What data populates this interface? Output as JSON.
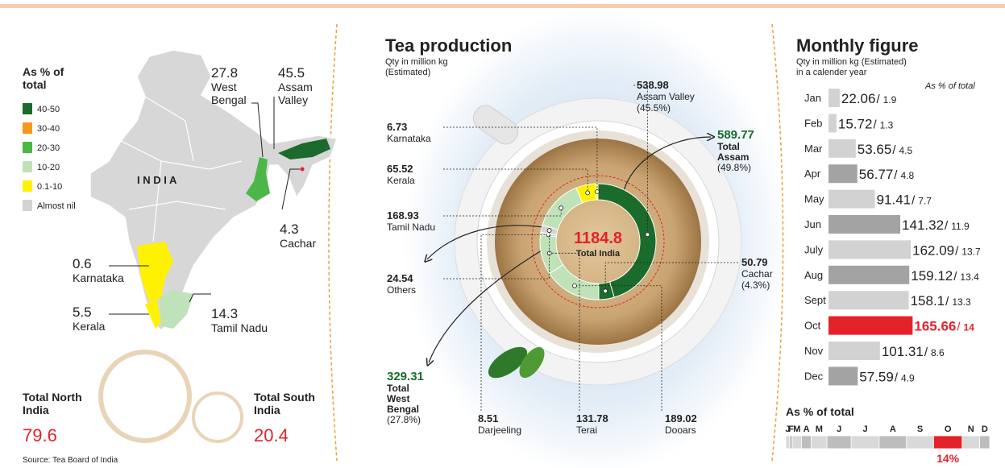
{
  "header": {
    "source": "Source: Tea Board of India"
  },
  "map": {
    "legend_title": "As % of total",
    "legend": [
      {
        "label": "40-50",
        "color": "#1b6b2c"
      },
      {
        "label": "30-40",
        "color": "#f39a1e"
      },
      {
        "label": "20-30",
        "color": "#4cb649"
      },
      {
        "label": "10-20",
        "color": "#bfe2b9"
      },
      {
        "label": "0.1-10",
        "color": "#fff200"
      },
      {
        "label": "Almost nil",
        "color": "#d3d3d3"
      }
    ],
    "country_label": "I N D I A",
    "regions": [
      {
        "value": 27.8,
        "name": "West Bengal"
      },
      {
        "value": 45.5,
        "name": "Assam Valley"
      },
      {
        "value": 4.3,
        "name": "Cachar"
      },
      {
        "value": 0.6,
        "name": "Karnataka"
      },
      {
        "value": 5.5,
        "name": "Kerala"
      },
      {
        "value": 14.3,
        "name": "Tamil Nadu"
      }
    ],
    "totals": [
      {
        "label": "Total North India",
        "value": 79.6
      },
      {
        "label": "Total South India",
        "value": 20.4
      }
    ]
  },
  "chart_data": [
    {
      "type": "donut",
      "title": "Tea production",
      "subtitle": "Qty in million kg (Estimated)",
      "categories": [
        "Assam Valley",
        "Cachar",
        "Dooars",
        "Terai",
        "Darjeeling",
        "Others",
        "Tamil Nadu",
        "Kerala",
        "Karnataka"
      ],
      "values": [
        538.98,
        50.79,
        189.02,
        131.78,
        8.51,
        24.54,
        168.93,
        65.52,
        6.73
      ],
      "colors": [
        "#1b6b2c",
        "#1b6b2c",
        "#bfe2b9",
        "#bfe2b9",
        "#bfe2b9",
        "#d3d3d3",
        "#bfe2b9",
        "#fff200",
        "#fff200"
      ],
      "notes": [
        "(45.5%)",
        "(4.3%)",
        null,
        null,
        null,
        null,
        null,
        null,
        null
      ],
      "center_value": 1184.8,
      "center_label": "Total India",
      "annotations": [
        {
          "value": 589.77,
          "label": "Total Assam",
          "note": "(49.8%)"
        },
        {
          "value": 329.31,
          "label": "Total West Bengal",
          "note": "(27.8%)"
        }
      ]
    },
    {
      "type": "bar",
      "orientation": "horizontal",
      "title": "Monthly figure",
      "subtitle": "Qty in million kg (Estimated) in a calender year",
      "share_title": "As % of total",
      "separator": "/",
      "categories": [
        "Jan",
        "Feb",
        "Mar",
        "Apr",
        "May",
        "Jun",
        "July",
        "Aug",
        "Sept",
        "Oct",
        "Nov",
        "Dec"
      ],
      "values": [
        22.06,
        15.72,
        53.65,
        56.77,
        91.41,
        141.32,
        162.09,
        159.12,
        158.1,
        165.66,
        101.31,
        57.59
      ],
      "share": [
        1.9,
        1.3,
        4.5,
        4.8,
        7.7,
        11.9,
        13.7,
        13.4,
        13.3,
        14,
        8.6,
        4.9
      ],
      "colors": [
        "#d2d2d2",
        "#d2d2d2",
        "#d2d2d2",
        "#a3a3a3",
        "#d2d2d2",
        "#a3a3a3",
        "#d2d2d2",
        "#a3a3a3",
        "#d2d2d2",
        "#e3222a",
        "#d2d2d2",
        "#a3a3a3"
      ],
      "strip": {
        "title": "As % of total",
        "letters": [
          "J",
          "F",
          "M",
          "A",
          "M",
          "J",
          "J",
          "A",
          "S",
          "O",
          "N",
          "D"
        ],
        "highlight_label": "14%"
      }
    }
  ]
}
